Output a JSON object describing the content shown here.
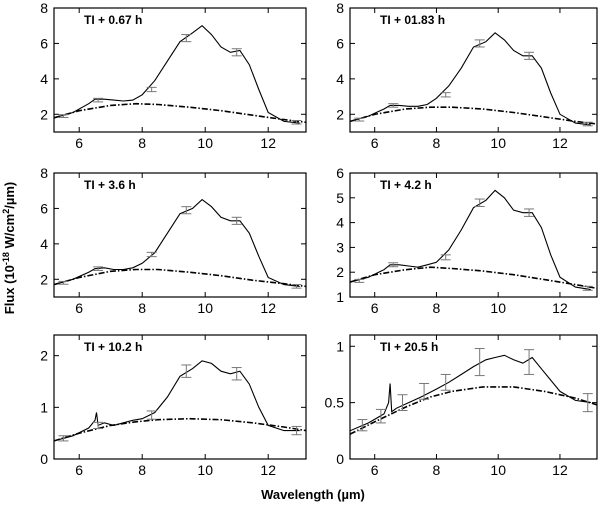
{
  "figure": {
    "ylabel_main": "Flux (10",
    "ylabel_exp1": "-18",
    "ylabel_mid": " W/cm",
    "ylabel_exp2": "2",
    "ylabel_end": "/µm)",
    "xlabel": "Wavelength (µm)"
  },
  "chart_data": [
    {
      "type": "line",
      "label": "TI + 0.67 h",
      "xlim": [
        5.2,
        13.2
      ],
      "ylim": [
        1.0,
        8.0
      ],
      "xticks": [
        6,
        8,
        10,
        12
      ],
      "yticks": [
        2,
        4,
        6,
        8
      ],
      "spectrum": {
        "x": [
          5.2,
          5.8,
          6.3,
          6.5,
          6.8,
          7.1,
          7.4,
          7.7,
          8.0,
          8.4,
          8.8,
          9.2,
          9.6,
          9.9,
          10.2,
          10.5,
          10.8,
          11.1,
          11.4,
          11.7,
          12.0,
          12.5,
          13.0
        ],
        "y": [
          1.8,
          2.1,
          2.6,
          2.85,
          2.85,
          2.8,
          2.75,
          2.8,
          3.1,
          3.9,
          5.0,
          6.1,
          6.6,
          7.0,
          6.5,
          5.8,
          5.5,
          5.6,
          4.8,
          3.4,
          2.1,
          1.6,
          1.5
        ]
      },
      "continuum": {
        "x": [
          5.2,
          6.0,
          7.0,
          7.8,
          8.5,
          9.5,
          10.5,
          11.5,
          12.5,
          13.2
        ],
        "y": [
          1.8,
          2.2,
          2.5,
          2.6,
          2.55,
          2.4,
          2.2,
          1.95,
          1.7,
          1.55
        ]
      },
      "error_bars": [
        {
          "x": 5.5,
          "y": 1.9,
          "err": 0.08
        },
        {
          "x": 6.6,
          "y": 2.8,
          "err": 0.1
        },
        {
          "x": 8.3,
          "y": 3.4,
          "err": 0.12
        },
        {
          "x": 9.4,
          "y": 6.3,
          "err": 0.2
        },
        {
          "x": 11.0,
          "y": 5.5,
          "err": 0.2
        },
        {
          "x": 12.9,
          "y": 1.55,
          "err": 0.1
        }
      ]
    },
    {
      "type": "line",
      "label": "TI + 01.83 h",
      "xlim": [
        5.2,
        13.2
      ],
      "ylim": [
        1.0,
        8.0
      ],
      "xticks": [
        6,
        8,
        10,
        12
      ],
      "yticks": [
        2,
        4,
        6,
        8
      ],
      "spectrum": {
        "x": [
          5.2,
          5.8,
          6.3,
          6.5,
          6.8,
          7.1,
          7.4,
          7.7,
          8.0,
          8.4,
          8.8,
          9.2,
          9.6,
          9.9,
          10.2,
          10.5,
          10.8,
          11.1,
          11.4,
          11.7,
          12.0,
          12.5,
          13.0
        ],
        "y": [
          1.6,
          1.9,
          2.3,
          2.5,
          2.5,
          2.45,
          2.45,
          2.55,
          2.9,
          3.6,
          4.6,
          5.8,
          6.1,
          6.6,
          6.2,
          5.6,
          5.3,
          5.3,
          4.6,
          3.2,
          2.0,
          1.5,
          1.4
        ]
      },
      "continuum": {
        "x": [
          5.2,
          6.0,
          7.0,
          7.8,
          8.5,
          9.5,
          10.5,
          11.5,
          12.5,
          13.2
        ],
        "y": [
          1.6,
          2.0,
          2.3,
          2.4,
          2.4,
          2.3,
          2.1,
          1.85,
          1.6,
          1.45
        ]
      },
      "error_bars": [
        {
          "x": 5.5,
          "y": 1.7,
          "err": 0.08
        },
        {
          "x": 6.6,
          "y": 2.5,
          "err": 0.1
        },
        {
          "x": 8.3,
          "y": 3.1,
          "err": 0.12
        },
        {
          "x": 9.4,
          "y": 6.0,
          "err": 0.2
        },
        {
          "x": 11.0,
          "y": 5.3,
          "err": 0.2
        },
        {
          "x": 12.9,
          "y": 1.45,
          "err": 0.1
        }
      ]
    },
    {
      "type": "line",
      "label": "TI + 3.6 h",
      "xlim": [
        5.2,
        13.2
      ],
      "ylim": [
        1.0,
        8.0
      ],
      "xticks": [
        6,
        8,
        10,
        12
      ],
      "yticks": [
        2,
        4,
        6,
        8
      ],
      "spectrum": {
        "x": [
          5.2,
          5.8,
          6.3,
          6.5,
          6.8,
          7.1,
          7.4,
          7.7,
          8.0,
          8.4,
          8.8,
          9.2,
          9.6,
          9.9,
          10.2,
          10.5,
          10.8,
          11.1,
          11.4,
          11.7,
          12.0,
          12.5,
          13.0
        ],
        "y": [
          1.7,
          2.0,
          2.4,
          2.6,
          2.65,
          2.55,
          2.55,
          2.65,
          2.9,
          3.5,
          4.6,
          5.7,
          6.0,
          6.5,
          6.1,
          5.5,
          5.3,
          5.3,
          4.6,
          3.3,
          2.1,
          1.7,
          1.6
        ]
      },
      "continuum": {
        "x": [
          5.2,
          6.0,
          7.0,
          7.8,
          8.5,
          9.5,
          10.5,
          11.5,
          12.5,
          13.2
        ],
        "y": [
          1.7,
          2.1,
          2.45,
          2.55,
          2.55,
          2.4,
          2.2,
          1.95,
          1.75,
          1.6
        ]
      },
      "error_bars": [
        {
          "x": 5.5,
          "y": 1.8,
          "err": 0.08
        },
        {
          "x": 6.6,
          "y": 2.6,
          "err": 0.1
        },
        {
          "x": 8.3,
          "y": 3.4,
          "err": 0.12
        },
        {
          "x": 9.4,
          "y": 5.9,
          "err": 0.2
        },
        {
          "x": 11.0,
          "y": 5.3,
          "err": 0.2
        },
        {
          "x": 12.9,
          "y": 1.6,
          "err": 0.1
        }
      ]
    },
    {
      "type": "line",
      "label": "TI + 4.2 h",
      "xlim": [
        5.2,
        13.2
      ],
      "ylim": [
        1.0,
        6.0
      ],
      "xticks": [
        6,
        8,
        10,
        12
      ],
      "yticks": [
        1,
        2,
        3,
        4,
        5,
        6
      ],
      "spectrum": {
        "x": [
          5.2,
          5.8,
          6.3,
          6.5,
          6.8,
          7.1,
          7.4,
          7.7,
          8.0,
          8.4,
          8.8,
          9.2,
          9.6,
          9.9,
          10.2,
          10.5,
          10.8,
          11.1,
          11.4,
          11.7,
          12.0,
          12.5,
          13.0
        ],
        "y": [
          1.6,
          1.8,
          2.1,
          2.3,
          2.3,
          2.25,
          2.2,
          2.3,
          2.4,
          2.9,
          3.7,
          4.6,
          4.9,
          5.3,
          5.0,
          4.5,
          4.4,
          4.4,
          3.8,
          2.7,
          1.8,
          1.4,
          1.3
        ]
      },
      "continuum": {
        "x": [
          5.2,
          6.0,
          7.0,
          7.8,
          8.5,
          9.5,
          10.5,
          11.5,
          12.5,
          13.2
        ],
        "y": [
          1.6,
          1.9,
          2.1,
          2.2,
          2.15,
          2.05,
          1.9,
          1.7,
          1.5,
          1.35
        ]
      },
      "error_bars": [
        {
          "x": 5.5,
          "y": 1.65,
          "err": 0.06
        },
        {
          "x": 6.6,
          "y": 2.3,
          "err": 0.08
        },
        {
          "x": 8.3,
          "y": 2.6,
          "err": 0.1
        },
        {
          "x": 9.4,
          "y": 4.8,
          "err": 0.15
        },
        {
          "x": 11.0,
          "y": 4.4,
          "err": 0.15
        },
        {
          "x": 12.9,
          "y": 1.35,
          "err": 0.08
        }
      ]
    },
    {
      "type": "line",
      "label": "TI + 10.2 h",
      "xlim": [
        5.2,
        13.2
      ],
      "ylim": [
        0.0,
        2.4
      ],
      "xticks": [
        6,
        8,
        10,
        12
      ],
      "yticks": [
        0,
        1,
        2
      ],
      "spectrum": {
        "x": [
          5.2,
          5.8,
          6.3,
          6.5,
          6.55,
          6.6,
          6.8,
          7.1,
          7.4,
          7.7,
          8.0,
          8.4,
          8.8,
          9.2,
          9.6,
          9.9,
          10.2,
          10.5,
          10.8,
          11.1,
          11.4,
          11.7,
          12.0,
          12.5,
          13.0
        ],
        "y": [
          0.35,
          0.45,
          0.6,
          0.75,
          0.9,
          0.65,
          0.7,
          0.65,
          0.7,
          0.75,
          0.78,
          0.9,
          1.2,
          1.6,
          1.75,
          1.9,
          1.85,
          1.7,
          1.65,
          1.7,
          1.45,
          1.0,
          0.65,
          0.55,
          0.55
        ]
      },
      "continuum": {
        "x": [
          5.2,
          6.0,
          7.0,
          7.8,
          8.5,
          9.5,
          10.5,
          11.5,
          12.5,
          13.2
        ],
        "y": [
          0.35,
          0.5,
          0.65,
          0.72,
          0.76,
          0.78,
          0.76,
          0.7,
          0.62,
          0.55
        ]
      },
      "error_bars": [
        {
          "x": 5.5,
          "y": 0.4,
          "err": 0.05
        },
        {
          "x": 6.6,
          "y": 0.65,
          "err": 0.06
        },
        {
          "x": 8.3,
          "y": 0.85,
          "err": 0.08
        },
        {
          "x": 9.4,
          "y": 1.7,
          "err": 0.12
        },
        {
          "x": 11.0,
          "y": 1.65,
          "err": 0.12
        },
        {
          "x": 12.9,
          "y": 0.55,
          "err": 0.08
        }
      ]
    },
    {
      "type": "line",
      "label": "TI + 20.5 h",
      "xlim": [
        5.2,
        13.2
      ],
      "ylim": [
        0.0,
        1.1
      ],
      "xticks": [
        6,
        8,
        10,
        12
      ],
      "yticks": [
        0,
        0.5,
        1
      ],
      "spectrum": {
        "x": [
          5.2,
          5.8,
          6.3,
          6.45,
          6.5,
          6.55,
          6.7,
          7.1,
          7.5,
          8.0,
          8.4,
          8.8,
          9.2,
          9.6,
          9.9,
          10.2,
          10.5,
          10.8,
          11.1,
          11.4,
          11.7,
          12.0,
          12.5,
          13.0
        ],
        "y": [
          0.25,
          0.32,
          0.4,
          0.5,
          0.67,
          0.42,
          0.45,
          0.5,
          0.55,
          0.62,
          0.68,
          0.75,
          0.82,
          0.88,
          0.9,
          0.92,
          0.88,
          0.85,
          0.9,
          0.8,
          0.7,
          0.6,
          0.52,
          0.5
        ]
      },
      "continuum": {
        "x": [
          5.2,
          6.0,
          7.0,
          7.8,
          8.5,
          9.5,
          10.5,
          11.5,
          12.5,
          13.2
        ],
        "y": [
          0.22,
          0.33,
          0.46,
          0.55,
          0.6,
          0.64,
          0.64,
          0.6,
          0.54,
          0.48
        ]
      },
      "error_bars": [
        {
          "x": 5.6,
          "y": 0.3,
          "err": 0.05
        },
        {
          "x": 6.2,
          "y": 0.38,
          "err": 0.06
        },
        {
          "x": 6.9,
          "y": 0.5,
          "err": 0.07
        },
        {
          "x": 7.6,
          "y": 0.6,
          "err": 0.07
        },
        {
          "x": 8.3,
          "y": 0.68,
          "err": 0.07
        },
        {
          "x": 9.4,
          "y": 0.86,
          "err": 0.12
        },
        {
          "x": 11.0,
          "y": 0.86,
          "err": 0.11
        },
        {
          "x": 12.9,
          "y": 0.5,
          "err": 0.08
        }
      ]
    }
  ]
}
